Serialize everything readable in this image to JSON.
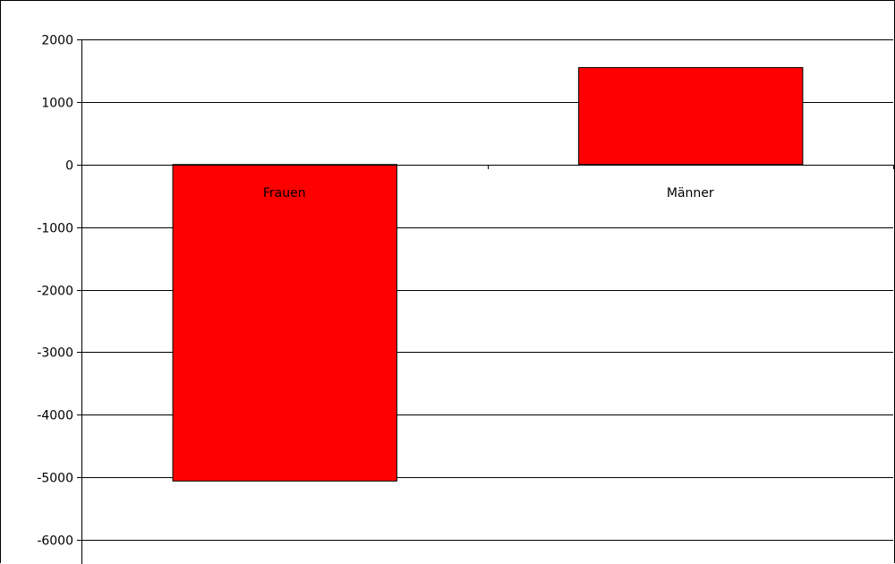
{
  "chart_data": {
    "type": "bar",
    "title": "",
    "xlabel": "",
    "ylabel": "",
    "categories": [
      "Frauen",
      "Männer"
    ],
    "values": [
      -5060,
      1550
    ],
    "ylim": [
      -6000,
      2000
    ],
    "yticks": [
      2000,
      1000,
      0,
      -1000,
      -2000,
      -3000,
      -4000,
      -5000,
      -6000
    ],
    "grid": true,
    "legend": "none",
    "bar_color": "#ff0000",
    "bar_edge_color": "#000000"
  }
}
